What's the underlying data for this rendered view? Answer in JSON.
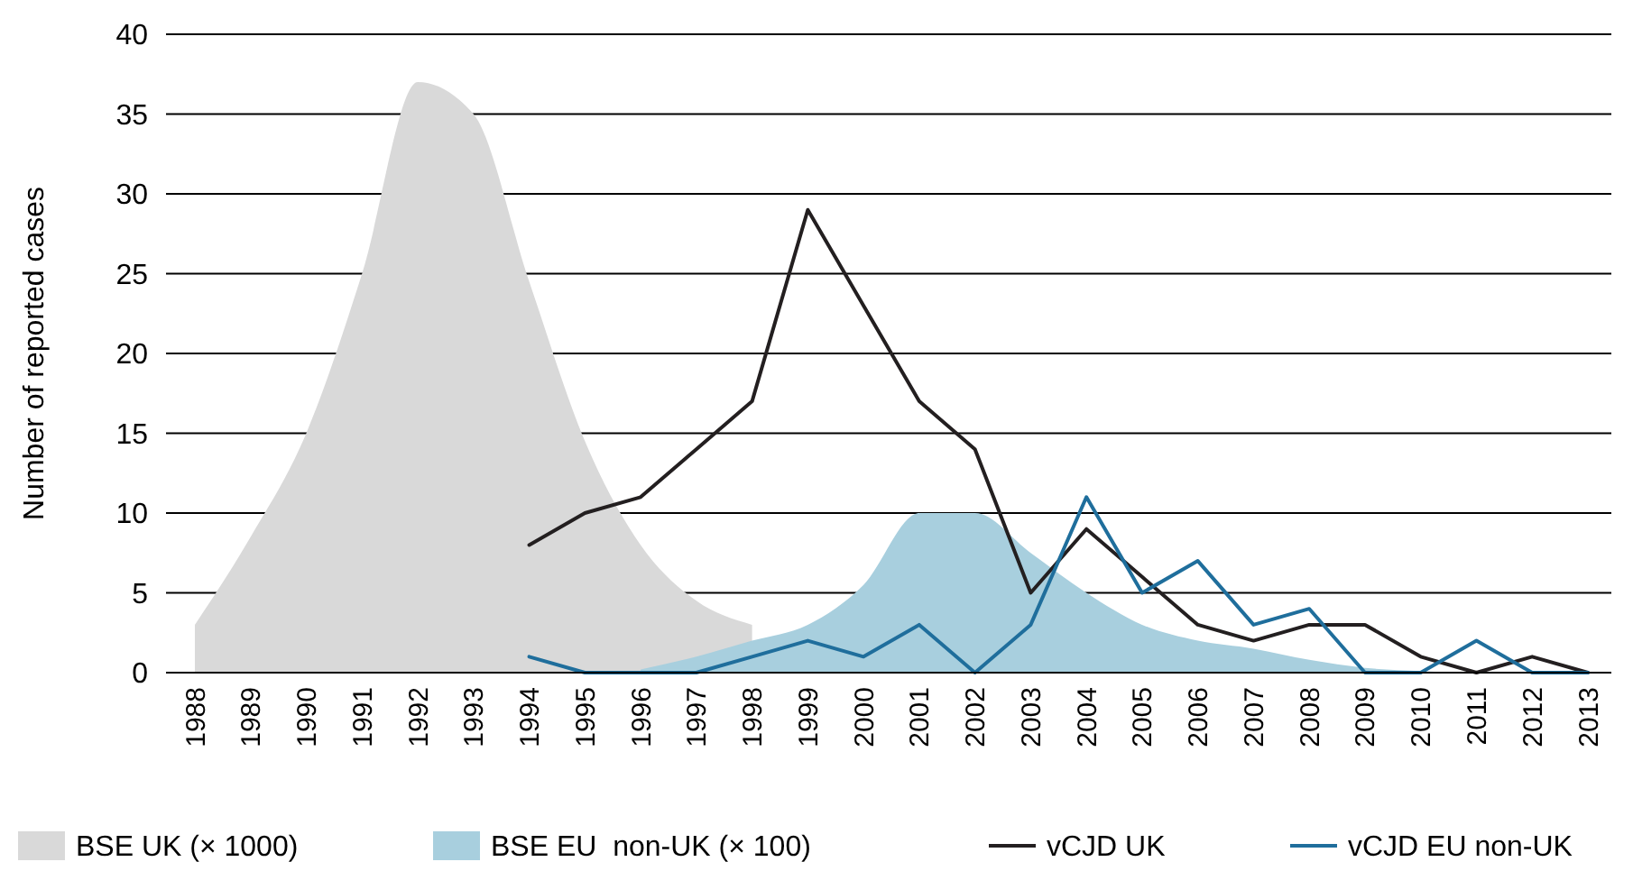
{
  "chart_data": {
    "type": "line",
    "ylabel": "Number of reported cases",
    "categories": [
      "1988",
      "1989",
      "1990",
      "1991",
      "1992",
      "1993",
      "1994",
      "1995",
      "1996",
      "1997",
      "1998",
      "1999",
      "2000",
      "2001",
      "2002",
      "2003",
      "2004",
      "2005",
      "2006",
      "2007",
      "2008",
      "2009",
      "2010",
      "2011",
      "2012",
      "2013"
    ],
    "series": [
      {
        "name": "BSE UK (× 1000)",
        "type": "area",
        "color": "#d9d9d9",
        "values": [
          3,
          8.5,
          15,
          25,
          37,
          35,
          24.5,
          14.5,
          8,
          4.5,
          3,
          null,
          null,
          null,
          null,
          null,
          null,
          null,
          null,
          null,
          null,
          null,
          null,
          null,
          null,
          null
        ]
      },
      {
        "name": "BSE EU  non-UK (× 100)",
        "type": "area",
        "color": "#a8cfde",
        "values": [
          null,
          null,
          null,
          null,
          null,
          null,
          null,
          null,
          0.2,
          1,
          2,
          3,
          5.5,
          10,
          10,
          7.5,
          5,
          3,
          2,
          1.5,
          0.8,
          0.3,
          0.1,
          0,
          0,
          0
        ]
      },
      {
        "name": "vCJD UK",
        "type": "line",
        "color": "#231f20",
        "values": [
          null,
          null,
          null,
          null,
          null,
          null,
          8,
          10,
          11,
          14,
          17,
          29,
          23,
          17,
          14,
          5,
          9,
          6,
          3,
          2,
          3,
          3,
          1,
          0,
          1,
          0
        ]
      },
      {
        "name": "vCJD EU non-UK",
        "type": "line",
        "color": "#1f6e9c",
        "values": [
          null,
          null,
          null,
          null,
          null,
          null,
          1,
          0,
          0,
          0,
          1,
          2,
          1,
          3,
          0,
          3,
          11,
          5,
          7,
          3,
          4,
          0,
          0,
          2,
          0,
          0
        ]
      }
    ],
    "ylim": [
      0,
      40
    ],
    "yticks": [
      0,
      5,
      10,
      15,
      20,
      25,
      30,
      35,
      40
    ],
    "grid": "y",
    "legend": "bottom"
  }
}
